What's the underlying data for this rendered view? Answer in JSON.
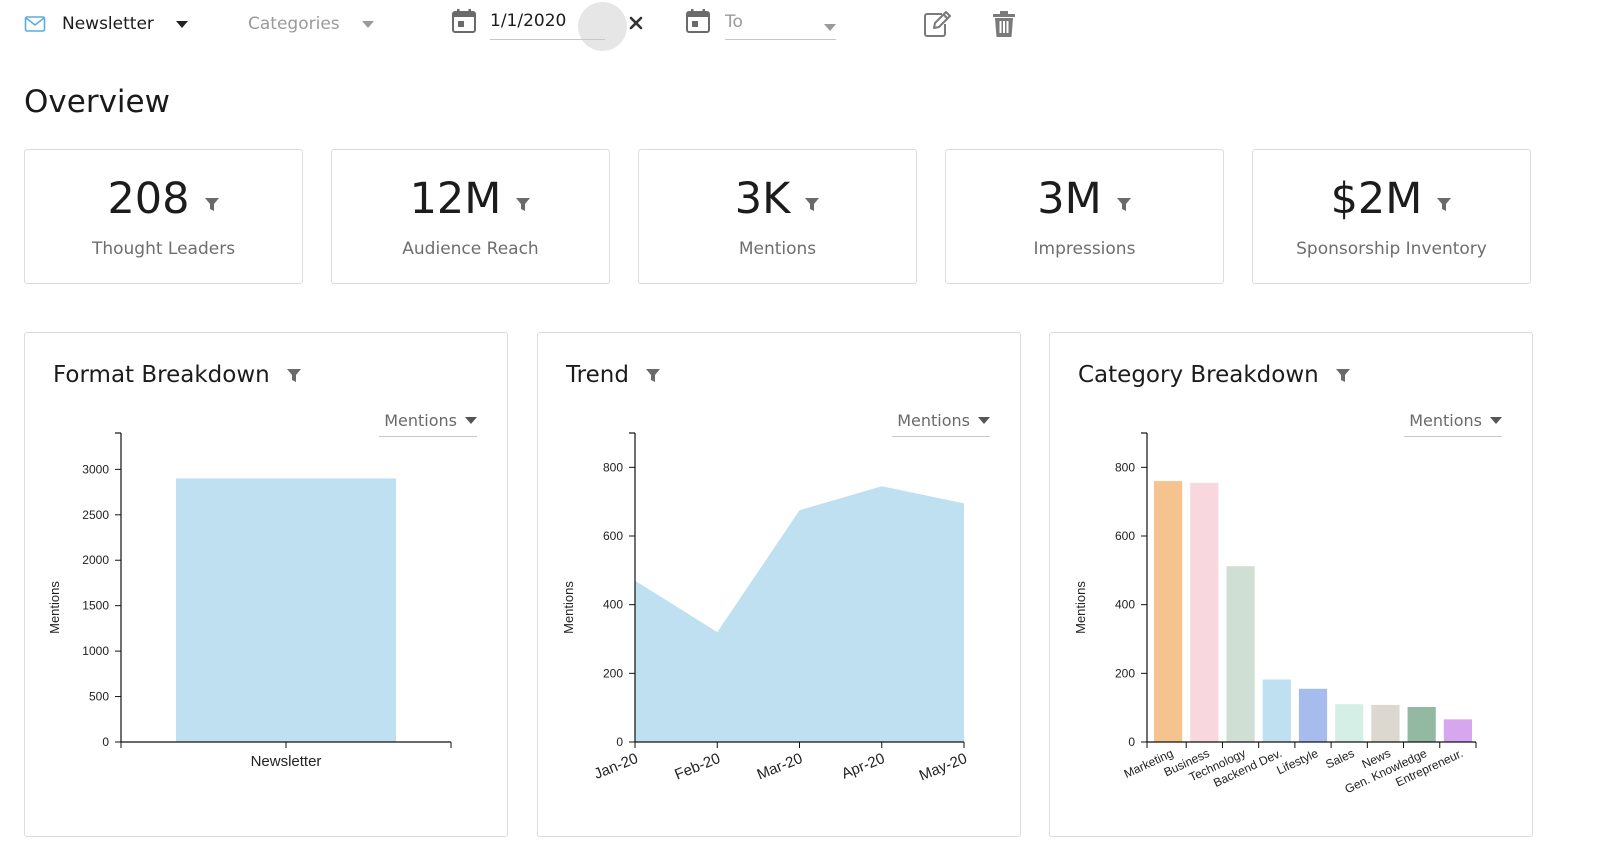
{
  "toolbar": {
    "source_label": "Newsletter",
    "categories_placeholder": "Categories",
    "from_date_value": "1/1/2020",
    "to_date_placeholder": "To",
    "icons": [
      "mail-icon",
      "calendar-icon",
      "clear-icon",
      "calendar-icon",
      "edit-icon",
      "trash-icon"
    ]
  },
  "overview": {
    "title": "Overview",
    "kpis": [
      {
        "value": "208",
        "label": "Thought Leaders"
      },
      {
        "value": "12M",
        "label": "Audience Reach"
      },
      {
        "value": "3K",
        "label": "Mentions"
      },
      {
        "value": "3M",
        "label": "Impressions"
      },
      {
        "value": "$2M",
        "label": "Sponsorship Inventory"
      }
    ]
  },
  "colors": {
    "accent_blue": "#bfe0f1",
    "mail_icon": "#5aaedc",
    "axis": "#111111"
  },
  "charts": [
    {
      "title": "Format Breakdown",
      "metric": "Mentions"
    },
    {
      "title": "Trend",
      "metric": "Mentions"
    },
    {
      "title": "Category Breakdown",
      "metric": "Mentions"
    }
  ],
  "chart_data": [
    {
      "type": "bar",
      "title": "Format Breakdown",
      "xlabel": "",
      "ylabel": "Mentions",
      "categories": [
        "Newsletter"
      ],
      "values": [
        2900
      ],
      "ylim": [
        0,
        3400
      ],
      "yticks": [
        0,
        500,
        1000,
        1500,
        2000,
        2500,
        3000
      ],
      "grid": false,
      "colors": [
        "#bfe0f1"
      ]
    },
    {
      "type": "area",
      "title": "Trend",
      "xlabel": "",
      "ylabel": "Mentions",
      "categories": [
        "Jan-20",
        "Feb-20",
        "Mar-20",
        "Apr-20",
        "May-20"
      ],
      "values": [
        470,
        320,
        675,
        745,
        695
      ],
      "ylim": [
        0,
        900
      ],
      "yticks": [
        0,
        200,
        400,
        600,
        800
      ],
      "grid": false,
      "colors": [
        "#bfe0f1"
      ]
    },
    {
      "type": "bar",
      "title": "Category Breakdown",
      "xlabel": "",
      "ylabel": "Mentions",
      "categories": [
        "Marketing",
        "Business",
        "Technology",
        "Backend Dev.",
        "Lifestyle",
        "Sales",
        "News",
        "Gen. Knowledge",
        "Entrepreneur."
      ],
      "values": [
        760,
        755,
        512,
        182,
        155,
        110,
        108,
        102,
        66
      ],
      "ylim": [
        0,
        900
      ],
      "yticks": [
        0,
        200,
        400,
        600,
        800
      ],
      "grid": false,
      "colors": [
        "#f5c48e",
        "#f8d7de",
        "#cfdfd4",
        "#bfe0f1",
        "#a6bcec",
        "#d5efe6",
        "#ddd8cf",
        "#93b9a2",
        "#d6a7ee"
      ]
    }
  ]
}
